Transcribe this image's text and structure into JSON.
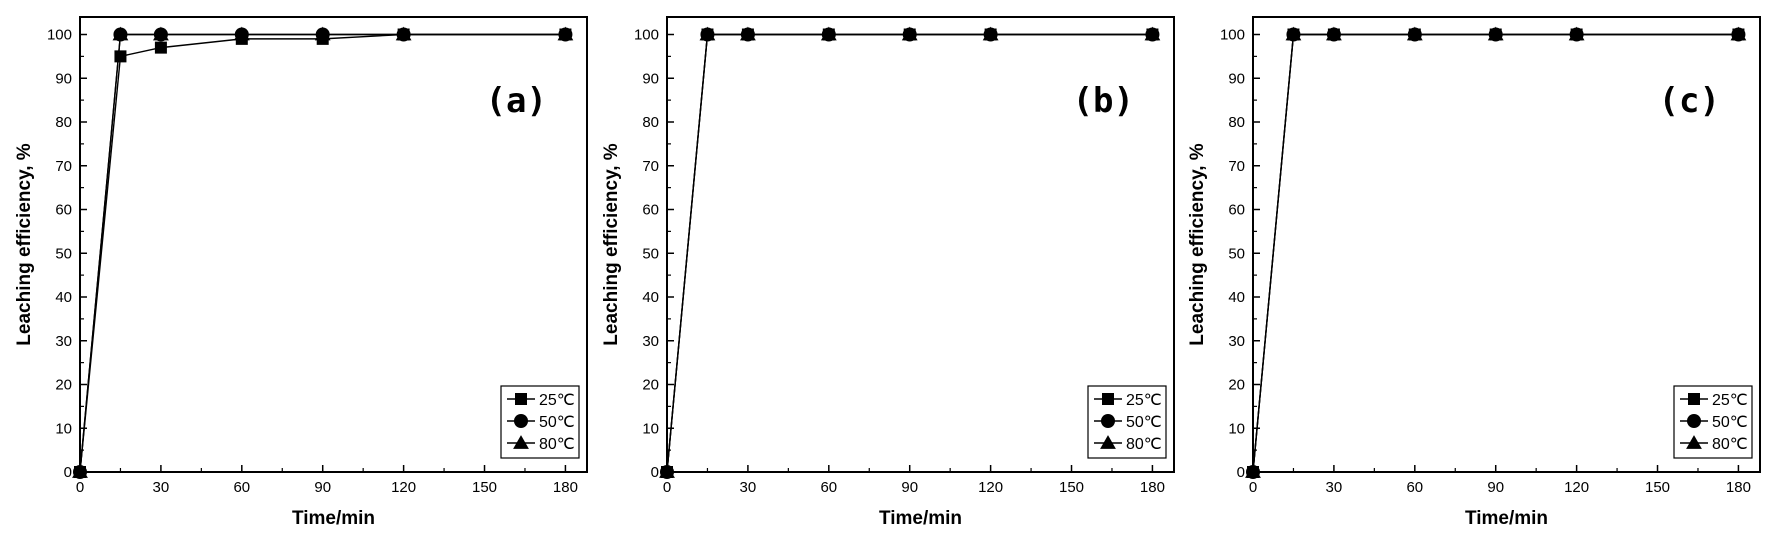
{
  "figure": {
    "chart_data": [
      {
        "type": "line",
        "panel_label": "(a)",
        "xlabel": "Time/min",
        "ylabel": "Leaching efficiency, %",
        "xlim": [
          0,
          188
        ],
        "ylim": [
          0,
          104
        ],
        "xticks": [
          0,
          30,
          60,
          90,
          120,
          150,
          180
        ],
        "yticks": [
          0,
          10,
          20,
          30,
          40,
          50,
          60,
          70,
          80,
          90,
          100
        ],
        "legend_position": "bottom-right",
        "series": [
          {
            "name": "25℃",
            "marker": "square",
            "x": [
              0,
              15,
              30,
              60,
              90,
              120,
              180
            ],
            "y": [
              0,
              95,
              97,
              99,
              99,
              100,
              100
            ]
          },
          {
            "name": "50℃",
            "marker": "circle",
            "x": [
              0,
              15,
              30,
              60,
              90,
              120,
              180
            ],
            "y": [
              0,
              100,
              100,
              100,
              100,
              100,
              100
            ]
          },
          {
            "name": "80℃",
            "marker": "triangle",
            "x": [
              0,
              15,
              30,
              60,
              90,
              120,
              180
            ],
            "y": [
              0,
              100,
              100,
              100,
              100,
              100,
              100
            ]
          }
        ]
      },
      {
        "type": "line",
        "panel_label": "(b)",
        "xlabel": "Time/min",
        "ylabel": "Leaching efficiency, %",
        "xlim": [
          0,
          188
        ],
        "ylim": [
          0,
          104
        ],
        "xticks": [
          0,
          30,
          60,
          90,
          120,
          150,
          180
        ],
        "yticks": [
          0,
          10,
          20,
          30,
          40,
          50,
          60,
          70,
          80,
          90,
          100
        ],
        "legend_position": "bottom-right",
        "series": [
          {
            "name": "25℃",
            "marker": "square",
            "x": [
              0,
              15,
              30,
              60,
              90,
              120,
              180
            ],
            "y": [
              0,
              100,
              100,
              100,
              100,
              100,
              100
            ]
          },
          {
            "name": "50℃",
            "marker": "circle",
            "x": [
              0,
              15,
              30,
              60,
              90,
              120,
              180
            ],
            "y": [
              0,
              100,
              100,
              100,
              100,
              100,
              100
            ]
          },
          {
            "name": "80℃",
            "marker": "triangle",
            "x": [
              0,
              15,
              30,
              60,
              90,
              120,
              180
            ],
            "y": [
              0,
              100,
              100,
              100,
              100,
              100,
              100
            ]
          }
        ]
      },
      {
        "type": "line",
        "panel_label": "(c)",
        "xlabel": "Time/min",
        "ylabel": "Leaching efficiency, %",
        "xlim": [
          0,
          188
        ],
        "ylim": [
          0,
          104
        ],
        "xticks": [
          0,
          30,
          60,
          90,
          120,
          150,
          180
        ],
        "yticks": [
          0,
          10,
          20,
          30,
          40,
          50,
          60,
          70,
          80,
          90,
          100
        ],
        "legend_position": "bottom-right",
        "series": [
          {
            "name": "25℃",
            "marker": "square",
            "x": [
              0,
              15,
              30,
              60,
              90,
              120,
              180
            ],
            "y": [
              0,
              100,
              100,
              100,
              100,
              100,
              100
            ]
          },
          {
            "name": "50℃",
            "marker": "circle",
            "x": [
              0,
              15,
              30,
              60,
              90,
              120,
              180
            ],
            "y": [
              0,
              100,
              100,
              100,
              100,
              100,
              100
            ]
          },
          {
            "name": "80℃",
            "marker": "triangle",
            "x": [
              0,
              15,
              30,
              60,
              90,
              120,
              180
            ],
            "y": [
              0,
              100,
              100,
              100,
              100,
              100,
              100
            ]
          }
        ]
      }
    ]
  }
}
